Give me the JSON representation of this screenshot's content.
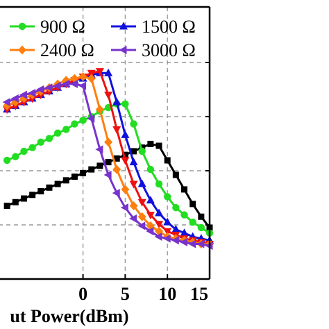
{
  "chart_data": {
    "type": "line",
    "xlabel": "ut Power(dBm)",
    "ylabel": "",
    "xlim": [
      -10,
      15
    ],
    "x_ticks": [
      0,
      5,
      10,
      15
    ],
    "x_tick_labels": [
      "0",
      "5",
      "10",
      "15"
    ],
    "grid": "dashed",
    "legend_placement": "top",
    "x": [
      -9,
      -8,
      -7,
      -6,
      -5,
      -4,
      -3,
      -2,
      -1,
      0,
      1,
      2,
      3,
      4,
      5,
      6,
      7,
      8,
      9,
      10,
      11,
      12,
      13,
      14,
      15
    ],
    "series": [
      {
        "name": "",
        "color": "#000000",
        "marker": "square",
        "values": [
          0.25,
          0.27,
          0.29,
          0.31,
          0.33,
          0.35,
          0.37,
          0.39,
          0.41,
          0.43,
          0.45,
          0.47,
          0.49,
          0.51,
          0.53,
          0.55,
          0.57,
          0.59,
          0.58,
          0.5,
          0.42,
          0.34,
          0.26,
          0.19,
          0.13
        ]
      },
      {
        "name": "900 Ω",
        "color": "#22dd22",
        "marker": "circle",
        "values": [
          0.5,
          0.52,
          0.55,
          0.57,
          0.6,
          0.62,
          0.65,
          0.67,
          0.7,
          0.72,
          0.74,
          0.77,
          0.79,
          0.81,
          0.81,
          0.7,
          0.55,
          0.45,
          0.37,
          0.3,
          0.24,
          0.2,
          0.16,
          0.13,
          0.1
        ]
      },
      {
        "name": "1500 Ω",
        "color": "#1111dd",
        "marker": "triangle-up",
        "values": [
          0.78,
          0.8,
          0.82,
          0.84,
          0.86,
          0.88,
          0.9,
          0.92,
          0.94,
          0.95,
          0.97,
          0.98,
          0.98,
          0.82,
          0.64,
          0.49,
          0.37,
          0.28,
          0.21,
          0.16,
          0.12,
          0.1,
          0.08,
          0.07,
          0.06
        ]
      },
      {
        "name": "",
        "color": "#ee1111",
        "marker": "triangle-down",
        "values": [
          0.78,
          0.8,
          0.82,
          0.84,
          0.86,
          0.88,
          0.9,
          0.92,
          0.94,
          0.96,
          0.98,
          0.99,
          0.86,
          0.67,
          0.5,
          0.37,
          0.27,
          0.2,
          0.15,
          0.11,
          0.09,
          0.07,
          0.06,
          0.05,
          0.04
        ]
      },
      {
        "name": "2400 Ω",
        "color": "#ff7f0e",
        "marker": "diamond",
        "values": [
          0.8,
          0.82,
          0.84,
          0.86,
          0.88,
          0.9,
          0.92,
          0.94,
          0.95,
          0.96,
          0.95,
          0.78,
          0.6,
          0.45,
          0.34,
          0.25,
          0.19,
          0.14,
          0.11,
          0.08,
          0.07,
          0.06,
          0.05,
          0.04,
          0.04
        ]
      },
      {
        "name": "3000 Ω",
        "color": "#7733cc",
        "marker": "triangle-left",
        "values": [
          0.82,
          0.84,
          0.86,
          0.87,
          0.89,
          0.9,
          0.91,
          0.92,
          0.92,
          0.91,
          0.73,
          0.56,
          0.42,
          0.32,
          0.24,
          0.18,
          0.14,
          0.11,
          0.08,
          0.07,
          0.06,
          0.05,
          0.04,
          0.04,
          0.03
        ]
      }
    ],
    "legend": [
      {
        "label": "900 Ω",
        "series_index": 1
      },
      {
        "label": "1500 Ω",
        "series_index": 2
      },
      {
        "label": "2400 Ω",
        "series_index": 4
      },
      {
        "label": "3000 Ω",
        "series_index": 5
      }
    ]
  }
}
